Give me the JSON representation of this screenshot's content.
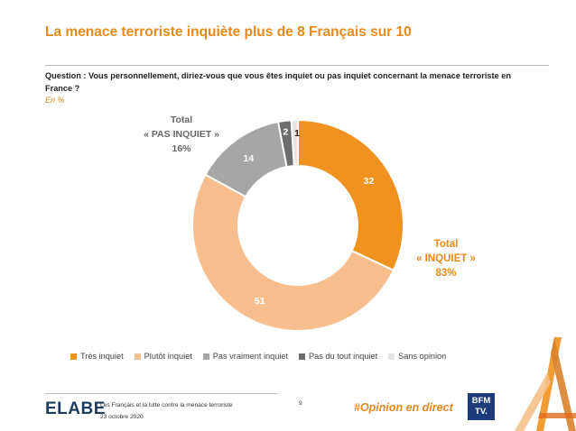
{
  "title": "La menace terroriste inquiète plus de 8 Français sur 10",
  "question": "Question : Vous personnellement, diriez-vous que vous êtes inquiet ou pas inquiet concernant la menace terroriste en France ?",
  "unit": "En %",
  "chart_data": {
    "type": "pie",
    "categories": [
      "Très inquiet",
      "Plutôt inquiet",
      "Pas vraiment inquiet",
      "Pas du tout inquiet",
      "Sans opinion"
    ],
    "values": [
      32,
      51,
      14,
      2,
      1
    ],
    "colors": [
      "#f0921f",
      "#f9be8e",
      "#a6a6a6",
      "#6d6d6d",
      "#e4e4e4"
    ],
    "label_colors": [
      "#ffffff",
      "#ffffff",
      "#ffffff",
      "#ffffff",
      "#222222"
    ],
    "legend_position": "bottom",
    "annotations": [
      {
        "lines": [
          "Total",
          "« INQUIET »",
          "83%"
        ],
        "color": "#e8891a"
      },
      {
        "lines": [
          "Total",
          "« PAS INQUIET »",
          "16%"
        ],
        "color": "#666666"
      }
    ]
  },
  "footer": {
    "logo": "ELABE",
    "source_line1": "Les Français et la lutte contre la menace terroriste",
    "source_line2": "23 octobre 2020",
    "page": "9",
    "hashtag": "#Opinion en direct",
    "bfm_line1": "BFM",
    "bfm_line2": "TV."
  }
}
